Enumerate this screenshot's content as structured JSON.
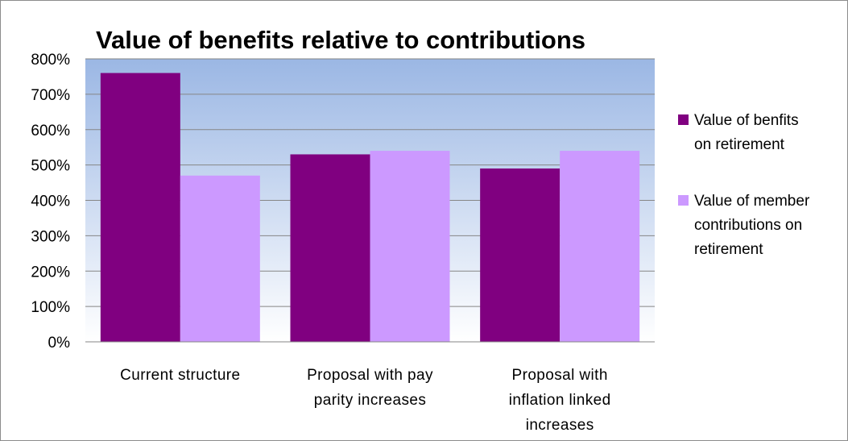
{
  "chart_data": {
    "type": "bar",
    "title": "Value of benefits relative to contributions",
    "categories": [
      "Current structure",
      "Proposal with pay parity increases",
      "Proposal with inflation linked increases"
    ],
    "series": [
      {
        "name": "Value of benfits on retirement",
        "color": "#800080",
        "values": [
          760,
          530,
          490
        ]
      },
      {
        "name": "Value of member contributions on retirement",
        "color": "#cc99ff",
        "values": [
          470,
          540,
          540
        ]
      }
    ],
    "ylim": [
      0,
      800
    ],
    "yticks": [
      "0%",
      "100%",
      "200%",
      "300%",
      "400%",
      "500%",
      "600%",
      "700%",
      "800%"
    ],
    "grid": true,
    "legend_position": "right",
    "plot_background": {
      "top": "#9bb7e4",
      "bottom": "#ffffff"
    }
  }
}
